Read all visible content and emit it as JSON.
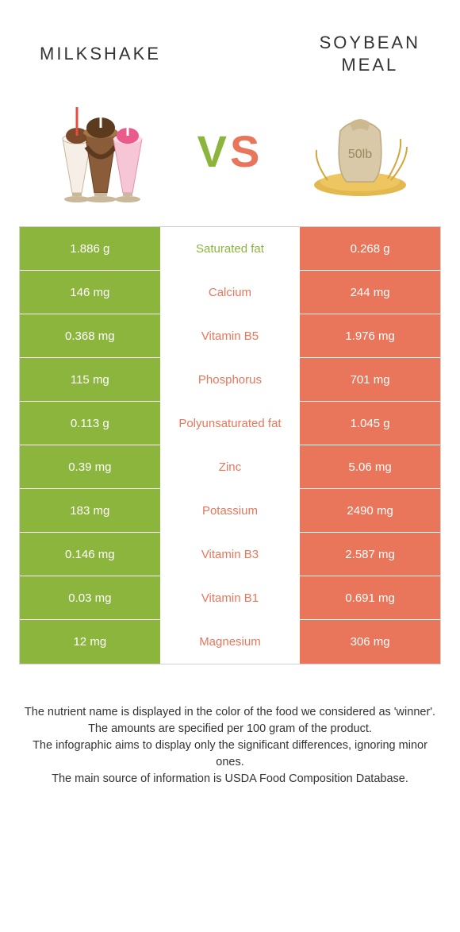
{
  "header": {
    "left_title": "MILKSHAKE",
    "right_title": "SOYBEAN\nMEAL"
  },
  "vs": {
    "text": "VS",
    "left_color": "#8bb53d",
    "right_color": "#e9765a"
  },
  "colors": {
    "left_col": "#8bb53d",
    "right_col": "#e9765a",
    "mid_bg": "#ffffff",
    "text_white": "#ffffff",
    "border": "#d0d0d0"
  },
  "rows": [
    {
      "left": "1.886 g",
      "label": "Saturated fat",
      "winner": "left",
      "right": "0.268 g"
    },
    {
      "left": "146 mg",
      "label": "Calcium",
      "winner": "right",
      "right": "244 mg"
    },
    {
      "left": "0.368 mg",
      "label": "Vitamin B5",
      "winner": "right",
      "right": "1.976 mg"
    },
    {
      "left": "115 mg",
      "label": "Phosphorus",
      "winner": "right",
      "right": "701 mg"
    },
    {
      "left": "0.113 g",
      "label": "Polyunsaturated fat",
      "winner": "right",
      "right": "1.045 g"
    },
    {
      "left": "0.39 mg",
      "label": "Zinc",
      "winner": "right",
      "right": "5.06 mg"
    },
    {
      "left": "183 mg",
      "label": "Potassium",
      "winner": "right",
      "right": "2490 mg"
    },
    {
      "left": "0.146 mg",
      "label": "Vitamin B3",
      "winner": "right",
      "right": "2.587 mg"
    },
    {
      "left": "0.03 mg",
      "label": "Vitamin B1",
      "winner": "right",
      "right": "0.691 mg"
    },
    {
      "left": "12 mg",
      "label": "Magnesium",
      "winner": "right",
      "right": "306 mg"
    }
  ],
  "footer": {
    "line1": "The nutrient name is displayed in the color of the food we considered as 'winner'.",
    "line2": "The amounts are specified per 100 gram of the product.",
    "line3": "The infographic aims to display only the significant differences, ignoring minor ones.",
    "line4": "The main source of information is USDA Food Composition Database."
  },
  "images": {
    "soybean": {
      "sack_label": "50lb"
    }
  }
}
